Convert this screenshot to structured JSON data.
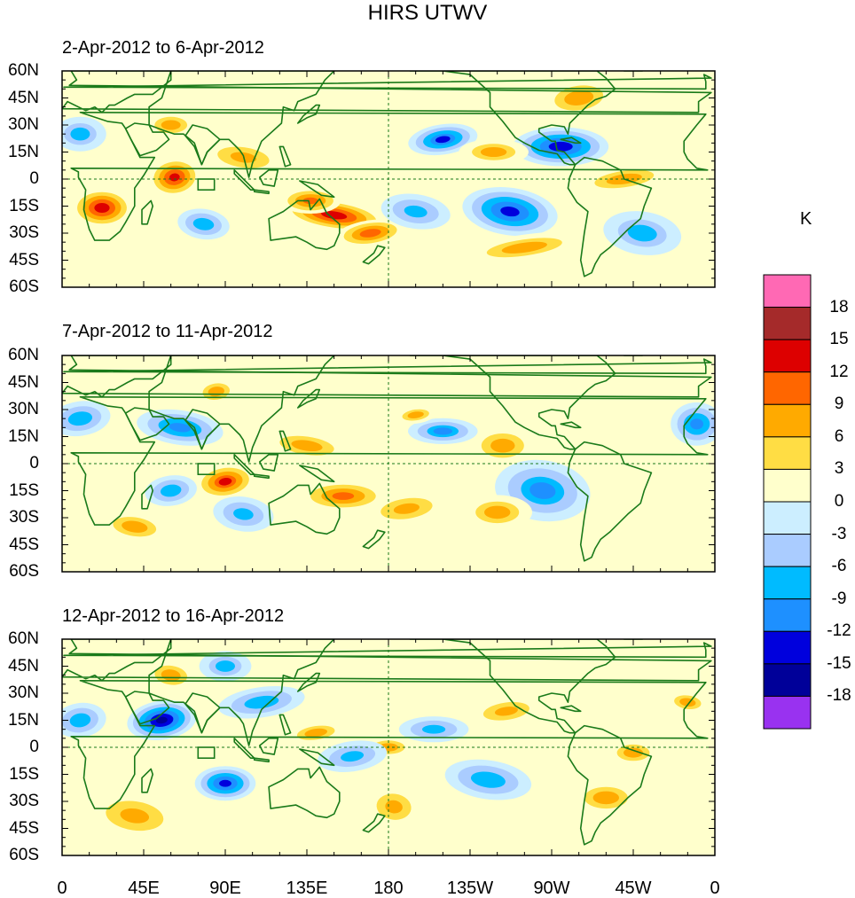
{
  "chart_data": {
    "type": "heatmap",
    "title": "HIRS UTWV",
    "units": "K",
    "panels": [
      {
        "title": "2-Apr-2012 to 6-Apr-2012"
      },
      {
        "title": "7-Apr-2012 to 11-Apr-2012"
      },
      {
        "title": "12-Apr-2012 to 16-Apr-2012"
      }
    ],
    "ylabels": [
      "60N",
      "45N",
      "30N",
      "15N",
      "0",
      "15S",
      "30S",
      "45S",
      "60S"
    ],
    "xlabels": [
      "0",
      "45E",
      "90E",
      "135E",
      "180",
      "135W",
      "90W",
      "45W",
      "0"
    ],
    "xlim": [
      0,
      360
    ],
    "ylim": [
      -60,
      60
    ],
    "colorbar": {
      "labels": [
        "18",
        "15",
        "12",
        "9",
        "6",
        "3",
        "0",
        "-3",
        "-6",
        "-9",
        "-12",
        "-15",
        "-18"
      ],
      "colors": [
        "#ff69b4",
        "#a52a2a",
        "#dd0000",
        "#ff6600",
        "#ffaa00",
        "#ffdd44",
        "#ffffcc",
        "#cceeff",
        "#aaccff",
        "#00bbff",
        "#1e90ff",
        "#0000dd",
        "#000099",
        "#9932f0"
      ]
    },
    "anomalies": [
      [
        {
          "lon": 62,
          "lat": 1,
          "value": 13,
          "rx": 12,
          "ry": 9
        },
        {
          "lon": 22,
          "lat": -16,
          "value": 14,
          "rx": 14,
          "ry": 9
        },
        {
          "lon": 150,
          "lat": -20,
          "value": 14,
          "rx": 24,
          "ry": 7
        },
        {
          "lon": 170,
          "lat": -30,
          "value": 11,
          "rx": 16,
          "ry": 6
        },
        {
          "lon": 137,
          "lat": -12,
          "value": 10,
          "rx": 14,
          "ry": 6
        },
        {
          "lon": 100,
          "lat": 12,
          "value": 7,
          "rx": 18,
          "ry": 7
        },
        {
          "lon": 210,
          "lat": 22,
          "value": -12,
          "rx": 16,
          "ry": 7
        },
        {
          "lon": 275,
          "lat": 18,
          "value": -14,
          "rx": 22,
          "ry": 9
        },
        {
          "lon": 247,
          "lat": -18,
          "value": -13,
          "rx": 22,
          "ry": 11
        },
        {
          "lon": 255,
          "lat": -38,
          "value": 6,
          "rx": 28,
          "ry": 6
        },
        {
          "lon": 238,
          "lat": 15,
          "value": 6,
          "rx": 16,
          "ry": 6
        },
        {
          "lon": 195,
          "lat": -18,
          "value": -7,
          "rx": 16,
          "ry": 8
        },
        {
          "lon": 310,
          "lat": 0,
          "value": 6,
          "rx": 22,
          "ry": 6
        },
        {
          "lon": 60,
          "lat": 30,
          "value": 6,
          "rx": 12,
          "ry": 6
        },
        {
          "lon": 78,
          "lat": -25,
          "value": -8,
          "rx": 12,
          "ry": 7
        },
        {
          "lon": 285,
          "lat": 45,
          "value": 6,
          "rx": 18,
          "ry": 9
        },
        {
          "lon": 10,
          "lat": 25,
          "value": -6,
          "rx": 12,
          "ry": 8
        },
        {
          "lon": 320,
          "lat": -30,
          "value": -6,
          "rx": 18,
          "ry": 10
        }
      ],
      [
        {
          "lon": 90,
          "lat": -10,
          "value": 12,
          "rx": 14,
          "ry": 8
        },
        {
          "lon": 155,
          "lat": -18,
          "value": 10,
          "rx": 20,
          "ry": 7
        },
        {
          "lon": 135,
          "lat": 10,
          "value": 8,
          "rx": 18,
          "ry": 6
        },
        {
          "lon": 190,
          "lat": -25,
          "value": 7,
          "rx": 18,
          "ry": 7
        },
        {
          "lon": 243,
          "lat": 10,
          "value": 8,
          "rx": 14,
          "ry": 8
        },
        {
          "lon": 65,
          "lat": 20,
          "value": -10,
          "rx": 20,
          "ry": 8
        },
        {
          "lon": 10,
          "lat": 25,
          "value": -8,
          "rx": 14,
          "ry": 8
        },
        {
          "lon": 350,
          "lat": 22,
          "value": -10,
          "rx": 12,
          "ry": 10
        },
        {
          "lon": 265,
          "lat": -15,
          "value": -9,
          "rx": 22,
          "ry": 14
        },
        {
          "lon": 60,
          "lat": -15,
          "value": -8,
          "rx": 12,
          "ry": 7
        },
        {
          "lon": 210,
          "lat": 18,
          "value": -9,
          "rx": 16,
          "ry": 6
        },
        {
          "lon": 100,
          "lat": -28,
          "value": -7,
          "rx": 14,
          "ry": 8
        },
        {
          "lon": 85,
          "lat": 40,
          "value": 6,
          "rx": 10,
          "ry": 6
        },
        {
          "lon": 240,
          "lat": -27,
          "value": 6,
          "rx": 16,
          "ry": 8
        },
        {
          "lon": 40,
          "lat": -35,
          "value": 6,
          "rx": 16,
          "ry": 7
        },
        {
          "lon": 195,
          "lat": 27,
          "value": 6,
          "rx": 10,
          "ry": 4
        }
      ],
      [
        {
          "lon": 55,
          "lat": 15,
          "value": -16,
          "rx": 16,
          "ry": 9
        },
        {
          "lon": 90,
          "lat": -20,
          "value": -13,
          "rx": 14,
          "ry": 8
        },
        {
          "lon": 40,
          "lat": -38,
          "value": 7,
          "rx": 20,
          "ry": 10
        },
        {
          "lon": 140,
          "lat": 8,
          "value": 6,
          "rx": 14,
          "ry": 5
        },
        {
          "lon": 180,
          "lat": 0,
          "value": 6,
          "rx": 12,
          "ry": 5
        },
        {
          "lon": 183,
          "lat": -33,
          "value": 7,
          "rx": 12,
          "ry": 9
        },
        {
          "lon": 245,
          "lat": 20,
          "value": 7,
          "rx": 16,
          "ry": 6
        },
        {
          "lon": 315,
          "lat": -3,
          "value": 6,
          "rx": 12,
          "ry": 6
        },
        {
          "lon": 60,
          "lat": 40,
          "value": 6,
          "rx": 12,
          "ry": 7
        },
        {
          "lon": 110,
          "lat": 25,
          "value": -8,
          "rx": 20,
          "ry": 7
        },
        {
          "lon": 300,
          "lat": -28,
          "value": 6,
          "rx": 16,
          "ry": 8
        },
        {
          "lon": 235,
          "lat": -18,
          "value": -8,
          "rx": 20,
          "ry": 9
        },
        {
          "lon": 10,
          "lat": 15,
          "value": -8,
          "rx": 12,
          "ry": 8
        },
        {
          "lon": 90,
          "lat": 45,
          "value": -6,
          "rx": 12,
          "ry": 7
        },
        {
          "lon": 345,
          "lat": 25,
          "value": 6,
          "rx": 10,
          "ry": 5
        },
        {
          "lon": 160,
          "lat": -5,
          "value": -7,
          "rx": 16,
          "ry": 7
        },
        {
          "lon": 205,
          "lat": 10,
          "value": -7,
          "rx": 16,
          "ry": 6
        }
      ]
    ]
  }
}
